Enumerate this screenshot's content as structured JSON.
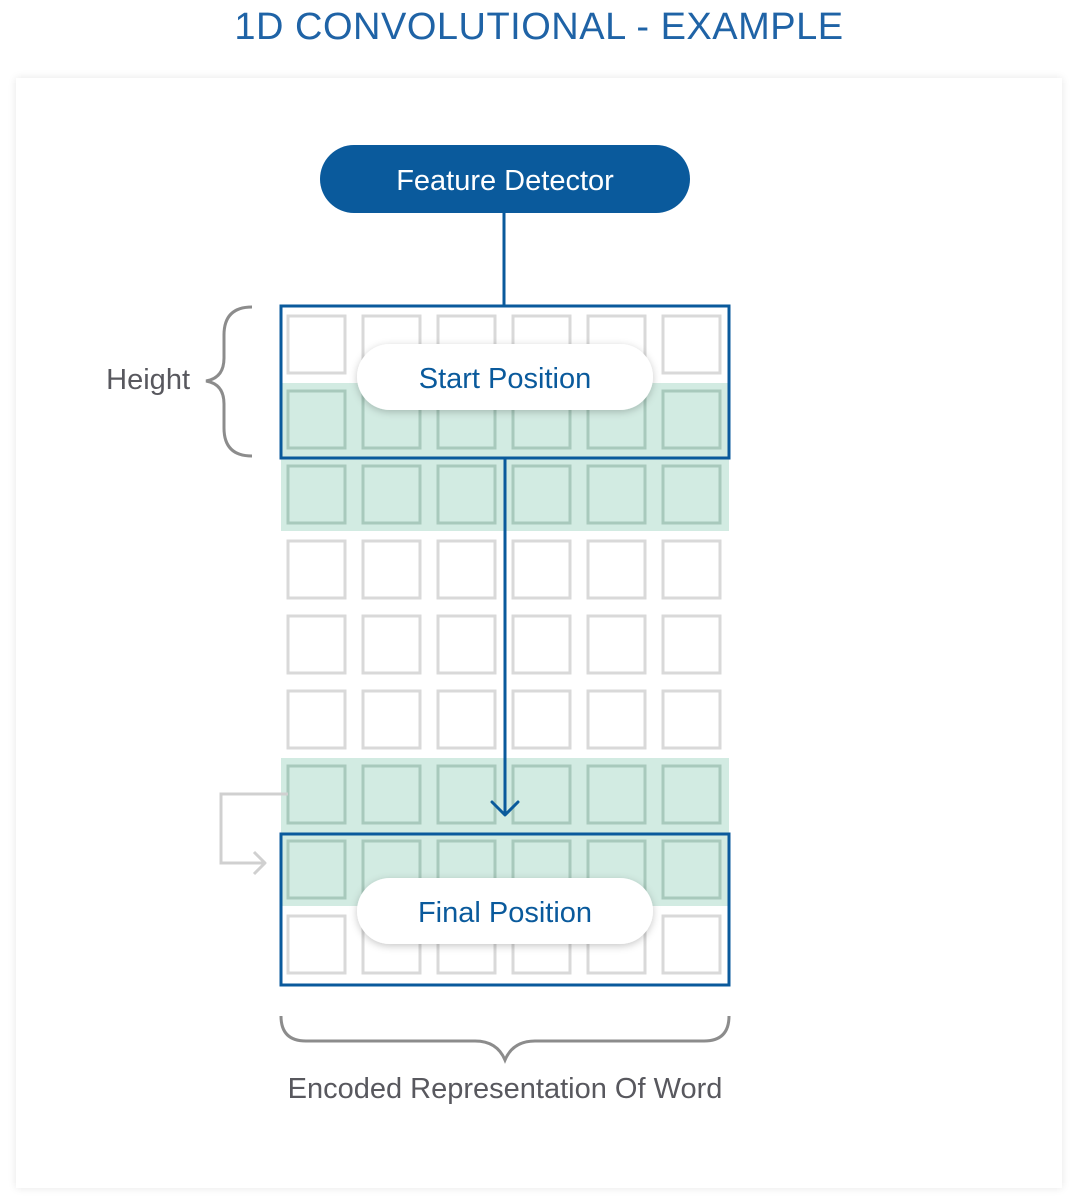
{
  "title": "1D CONVOLUTIONAL - EXAMPLE",
  "feature_detector": "Feature Detector",
  "start_position": "Start Position",
  "final_position": "Final Position",
  "height_label": "Height",
  "bottom_label": "Encoded Representation Of Word",
  "grid": {
    "rows": 9,
    "cols": 6,
    "highlighted_rows": [
      1,
      2,
      6,
      7
    ]
  },
  "colors": {
    "primary": "#0a5a9c",
    "highlight": "#d2ebe2",
    "cell_border": "#d9d9d9",
    "highlight_cell_border": "#a8c9bc",
    "brace": "#8c8c8c",
    "text_gray": "#58585e"
  }
}
